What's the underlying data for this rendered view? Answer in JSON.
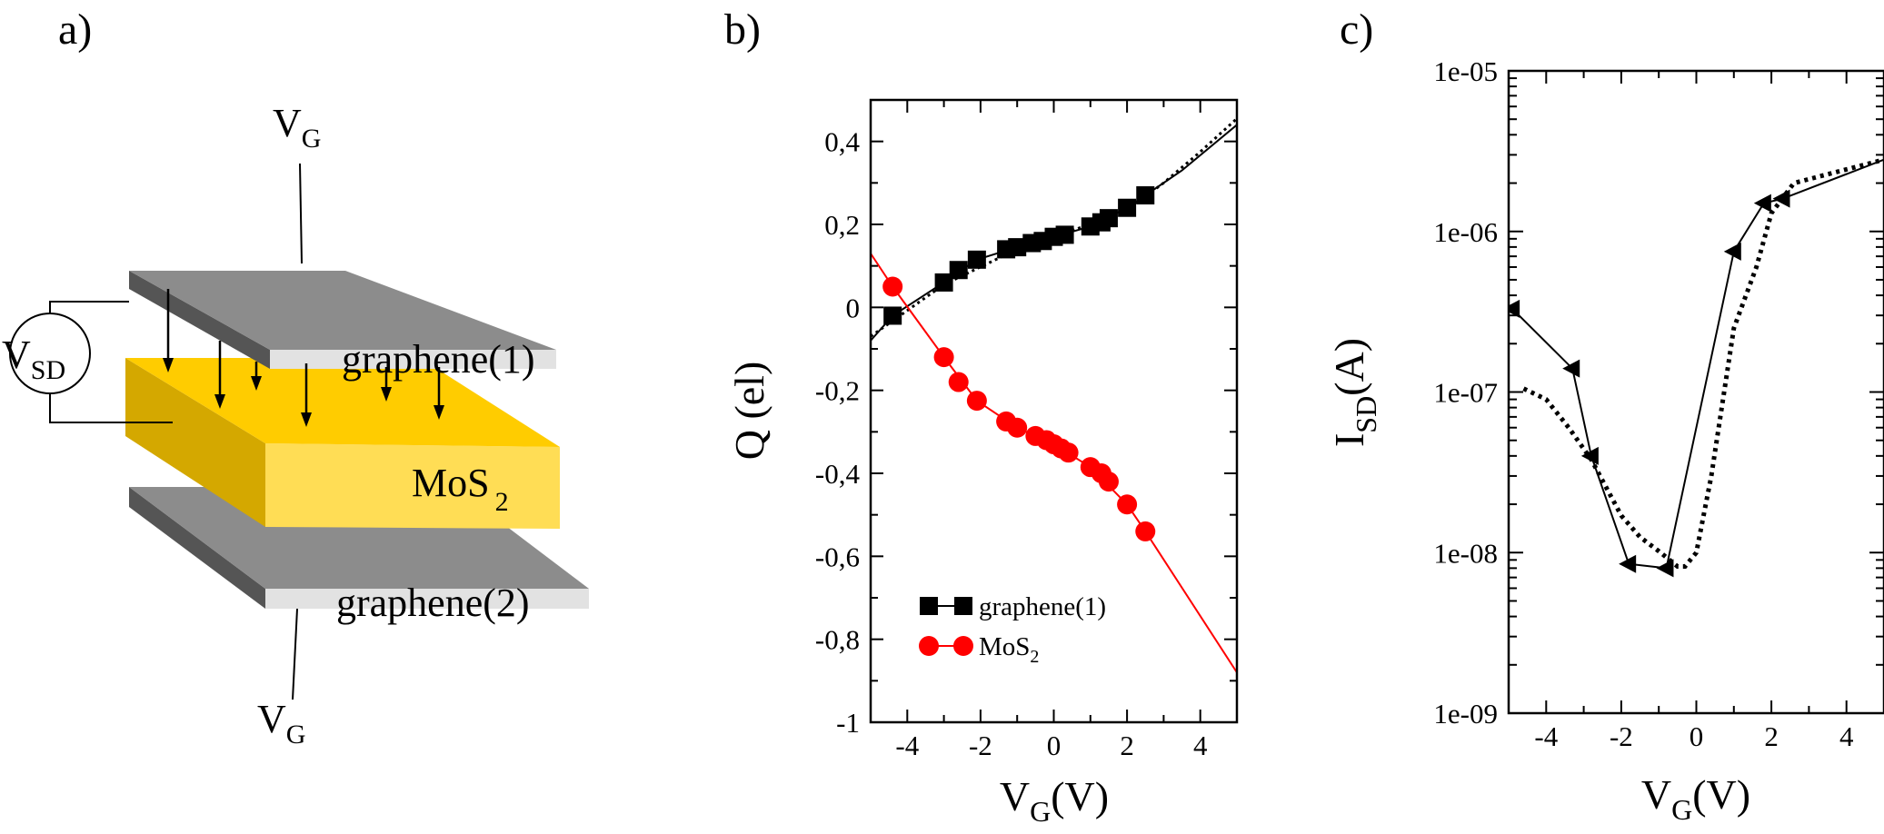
{
  "panels": {
    "a": {
      "label": "a)",
      "vg_top": {
        "main": "V",
        "sub": "G"
      },
      "vg_bottom": {
        "main": "V",
        "sub": "G"
      },
      "vsd": {
        "main": "V",
        "sub": "SD"
      },
      "graphene1": "graphene(1)",
      "graphene2": "graphene(2)",
      "mos2": {
        "main": "MoS",
        "sub": "2"
      },
      "colors": {
        "graphene_top": "#8c8c8c",
        "graphene_edge": "#e2e2e2",
        "graphene_side": "#555555",
        "mos2_top": "#ffcc00",
        "mos2_front": "#ffdd55",
        "mos2_side": "#d4a800"
      }
    },
    "b": {
      "label": "b)"
    },
    "c": {
      "label": "c)"
    }
  },
  "chart_data": [
    {
      "type": "line",
      "panel": "b",
      "ylabel": "Q (el)",
      "xlabel": {
        "main": "V",
        "sub": "G",
        "unit": "(V)"
      },
      "xlim": [
        -5,
        5
      ],
      "ylim": [
        -1,
        0.5
      ],
      "xticks": [
        -4,
        -2,
        0,
        2,
        4
      ],
      "xtick_labels": [
        "-4",
        "-2",
        "0",
        "2",
        "4"
      ],
      "yticks": [
        0.4,
        0.2,
        0,
        -0.2,
        -0.4,
        -0.6,
        -0.8,
        -1
      ],
      "ytick_labels": [
        "0,4",
        "0,2",
        "0",
        "-0,2",
        "-0,4",
        "-0,6",
        "-0,8",
        "-1"
      ],
      "legend": {
        "position": "bottom-left",
        "entries": [
          {
            "label": "graphene(1)"
          },
          {
            "label": "MoS",
            "sub": "2"
          }
        ]
      },
      "series": [
        {
          "name": "graphene(1)",
          "marker": "square",
          "color": "#000000",
          "points": [
            [
              -4.4,
              -0.02
            ],
            [
              -3.0,
              0.06
            ],
            [
              -2.6,
              0.09
            ],
            [
              -2.1,
              0.115
            ],
            [
              -1.3,
              0.14
            ],
            [
              -1.0,
              0.145
            ],
            [
              -0.6,
              0.155
            ],
            [
              -0.3,
              0.16
            ],
            [
              0.0,
              0.17
            ],
            [
              0.3,
              0.175
            ],
            [
              1.0,
              0.195
            ],
            [
              1.3,
              0.205
            ],
            [
              1.5,
              0.215
            ],
            [
              2.0,
              0.24
            ],
            [
              2.5,
              0.27
            ]
          ],
          "fit_solid": [
            [
              -5.0,
              -0.08
            ],
            [
              -4.4,
              -0.02
            ],
            [
              -3.0,
              0.06
            ],
            [
              -2.1,
              0.115
            ],
            [
              -1.0,
              0.145
            ],
            [
              0.0,
              0.17
            ],
            [
              1.0,
              0.195
            ],
            [
              2.0,
              0.24
            ],
            [
              2.5,
              0.27
            ],
            [
              3.5,
              0.33
            ],
            [
              5.0,
              0.44
            ]
          ],
          "fit_dotted": [
            [
              -5.0,
              -0.07
            ],
            [
              -3.0,
              0.055
            ],
            [
              -1.0,
              0.14
            ],
            [
              0.0,
              0.168
            ],
            [
              2.0,
              0.235
            ],
            [
              3.0,
              0.3
            ],
            [
              4.0,
              0.375
            ],
            [
              5.0,
              0.455
            ]
          ]
        },
        {
          "name": "MoS2",
          "marker": "circle",
          "color": "#ff0000",
          "points": [
            [
              -4.4,
              0.05
            ],
            [
              -3.0,
              -0.12
            ],
            [
              -2.6,
              -0.18
            ],
            [
              -2.1,
              -0.225
            ],
            [
              -1.3,
              -0.275
            ],
            [
              -1.0,
              -0.29
            ],
            [
              -0.5,
              -0.31
            ],
            [
              -0.2,
              -0.32
            ],
            [
              0.0,
              -0.33
            ],
            [
              0.2,
              -0.34
            ],
            [
              0.4,
              -0.35
            ],
            [
              1.0,
              -0.385
            ],
            [
              1.3,
              -0.4
            ],
            [
              1.5,
              -0.42
            ],
            [
              2.0,
              -0.475
            ],
            [
              2.5,
              -0.54
            ]
          ],
          "fit_solid": [
            [
              -5.0,
              0.13
            ],
            [
              -4.4,
              0.05
            ],
            [
              -3.0,
              -0.12
            ],
            [
              -2.1,
              -0.225
            ],
            [
              -1.0,
              -0.29
            ],
            [
              0.0,
              -0.33
            ],
            [
              1.0,
              -0.385
            ],
            [
              2.0,
              -0.475
            ],
            [
              2.5,
              -0.54
            ],
            [
              5.0,
              -0.88
            ]
          ]
        }
      ]
    },
    {
      "type": "line",
      "panel": "c",
      "yscale": "log",
      "ylabel": {
        "main": "I",
        "sub": "SD",
        "unit": "(A)"
      },
      "xlabel": {
        "main": "V",
        "sub": "G",
        "unit": "(V)"
      },
      "xlim": [
        -5,
        5
      ],
      "ylim": [
        1e-09,
        1e-05
      ],
      "xticks": [
        -4,
        -2,
        0,
        2,
        4
      ],
      "xtick_labels": [
        "-4",
        "-2",
        "0",
        "2",
        "4"
      ],
      "yticks": [
        1e-05,
        1e-06,
        1e-07,
        1e-08,
        1e-09
      ],
      "ytick_labels": [
        "1e-05",
        "1e-06",
        "1e-07",
        "1e-08",
        "1e-09"
      ],
      "series": [
        {
          "marker": "triangle-left",
          "line": "solid",
          "color": "#000000",
          "points": [
            [
              -4.9,
              3.3e-07
            ],
            [
              -3.3,
              1.4e-07
            ],
            [
              -2.8,
              4e-08
            ],
            [
              -1.8,
              8.5e-09
            ],
            [
              -0.8,
              8e-09
            ],
            [
              1.0,
              7.5e-07
            ],
            [
              1.8,
              1.5e-06
            ],
            [
              2.3,
              1.6e-06
            ],
            [
              5.0,
              2.8e-06
            ]
          ],
          "marker_points": [
            [
              -4.9,
              3.3e-07
            ],
            [
              -3.3,
              1.4e-07
            ],
            [
              -2.8,
              4e-08
            ],
            [
              -1.8,
              8.5e-09
            ],
            [
              -0.8,
              8e-09
            ],
            [
              1.0,
              7.5e-07
            ],
            [
              1.8,
              1.5e-06
            ],
            [
              2.3,
              1.6e-06
            ]
          ]
        },
        {
          "line": "dotted",
          "color": "#000000",
          "points": [
            [
              -4.6,
              1.05e-07
            ],
            [
              -4.0,
              9e-08
            ],
            [
              -3.4,
              6e-08
            ],
            [
              -2.8,
              3.8e-08
            ],
            [
              -2.0,
              1.7e-08
            ],
            [
              -1.5,
              1.25e-08
            ],
            [
              -1.0,
              1.02e-08
            ],
            [
              -0.5,
              8.2e-09
            ],
            [
              -0.3,
              8.2e-09
            ],
            [
              0.0,
              1e-08
            ],
            [
              0.4,
              3e-08
            ],
            [
              1.0,
              2.5e-07
            ],
            [
              1.6,
              6e-07
            ],
            [
              2.0,
              1.3e-06
            ],
            [
              2.6,
              2e-06
            ],
            [
              5.0,
              2.8e-06
            ]
          ]
        }
      ]
    }
  ]
}
